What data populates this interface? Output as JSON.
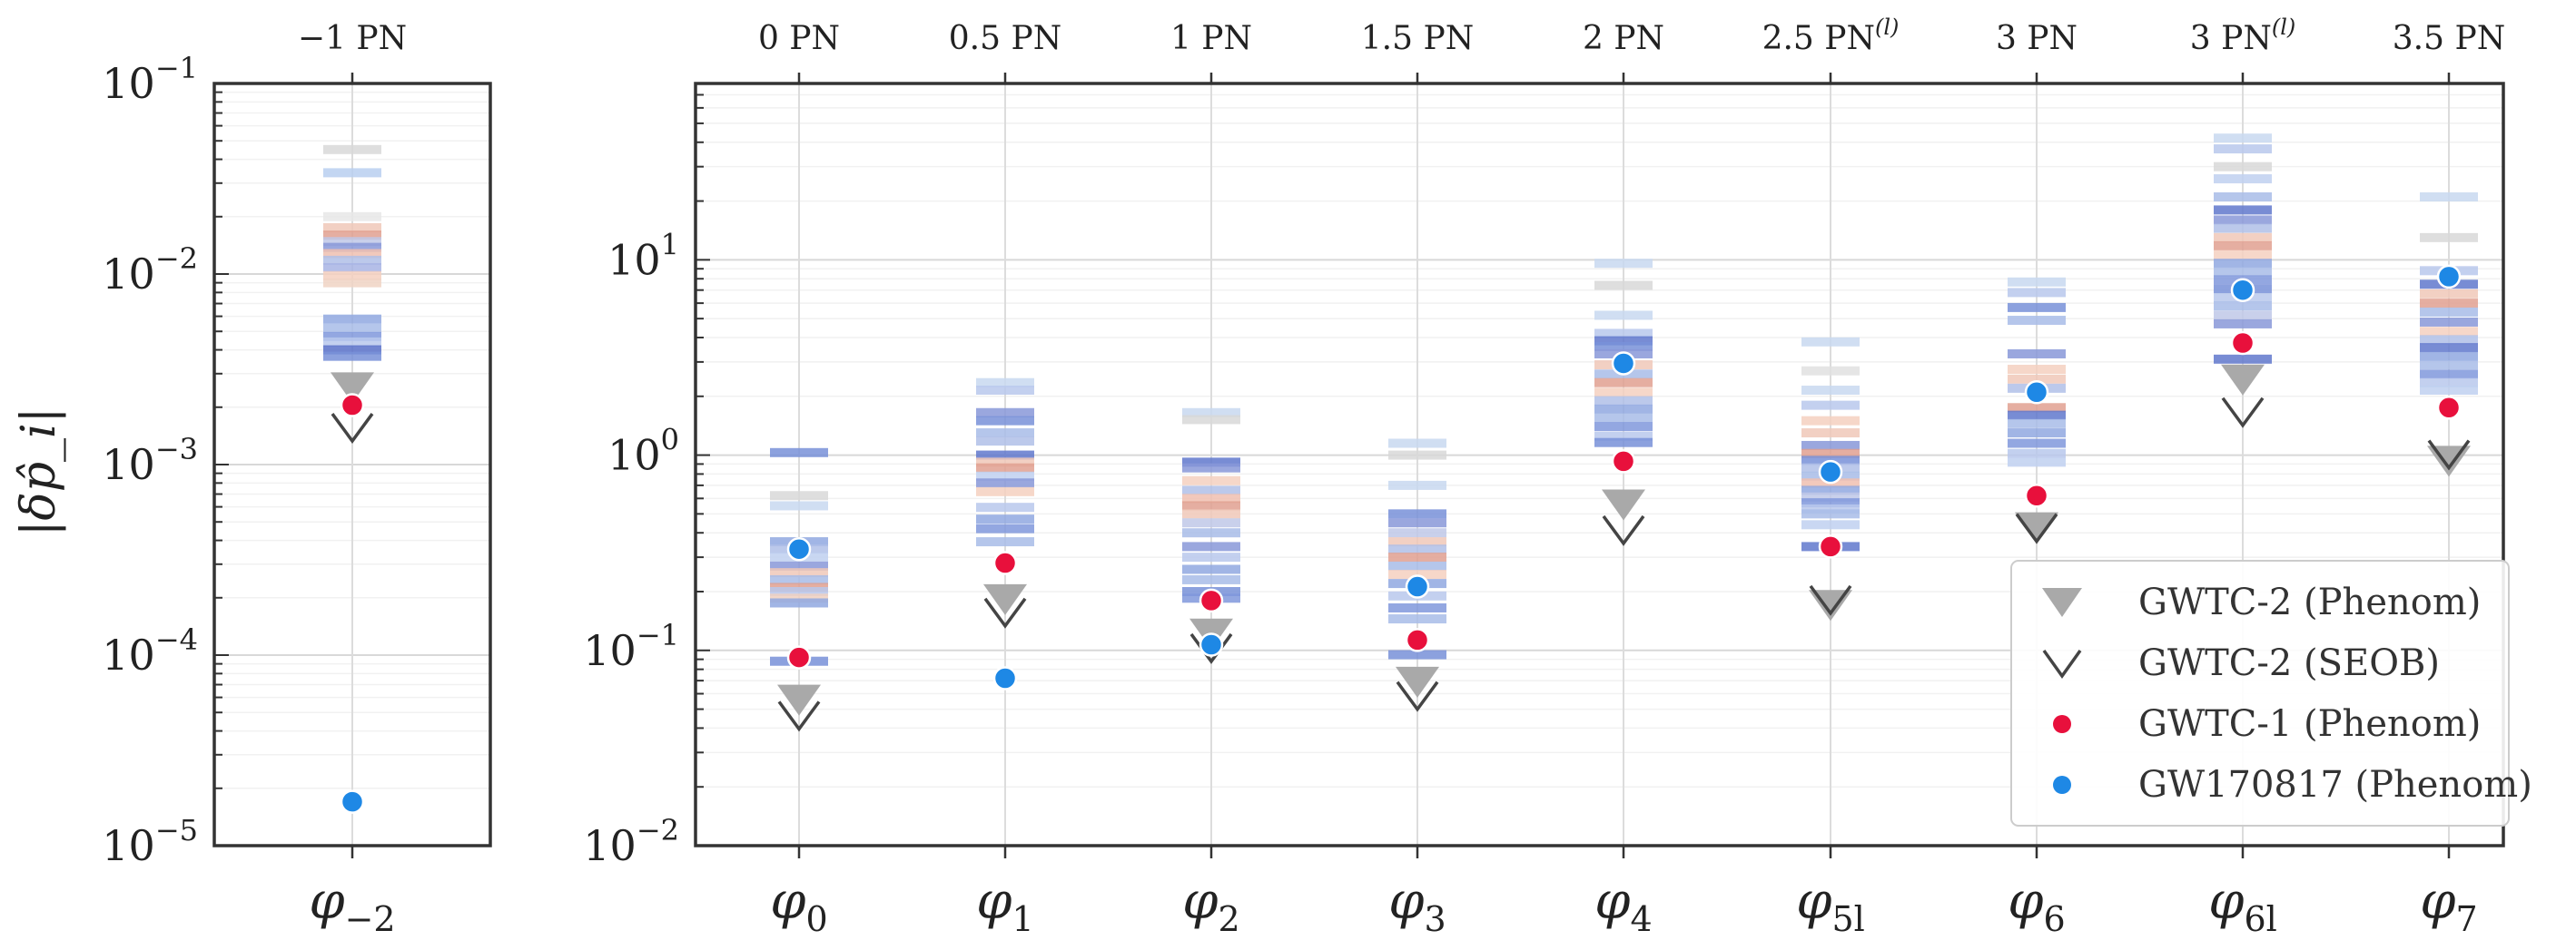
{
  "chart_data": {
    "type": "scatter",
    "yscale": "log",
    "ylabel": "|δp̂_i|",
    "panels": [
      {
        "name": "left",
        "ylim": [
          1e-05,
          0.1
        ],
        "yticks": [
          {
            "v": 1e-05,
            "base": "10",
            "exp": "−5"
          },
          {
            "v": 0.0001,
            "base": "10",
            "exp": "−4"
          },
          {
            "v": 0.001,
            "base": "10",
            "exp": "−3"
          },
          {
            "v": 0.01,
            "base": "10",
            "exp": "−2"
          },
          {
            "v": 0.1,
            "base": "10",
            "exp": "−1"
          }
        ],
        "categories": [
          {
            "label": "φ",
            "sub": "−2",
            "top": "−1 PN",
            "top_sup": "",
            "phenom": 0.0025,
            "seob": 0.00155,
            "gwtc1": 0.00205,
            "gw170817": 1.7e-05,
            "bars": [
              [
                0.045,
                "#d8d8d8"
              ],
              [
                0.034,
                "#b8cff0"
              ],
              [
                0.02,
                "#e8e8e8"
              ],
              [
                0.0175,
                "#f0c8b8"
              ],
              [
                0.016,
                "#e0a090"
              ],
              [
                0.0148,
                "#c0c8e8"
              ],
              [
                0.0138,
                "#8898d8"
              ],
              [
                0.0128,
                "#f0c0b0"
              ],
              [
                0.0118,
                "#b0c0e8"
              ],
              [
                0.0108,
                "#a8b4e4"
              ],
              [
                0.0098,
                "#f4d0c0"
              ],
              [
                0.009,
                "#f0d4c4"
              ],
              [
                0.0058,
                "#90a8e0"
              ],
              [
                0.0052,
                "#a8bce8"
              ],
              [
                0.0047,
                "#8098dc"
              ],
              [
                0.0044,
                "#b8c8ec"
              ],
              [
                0.004,
                "#5870c8"
              ],
              [
                0.0037,
                "#7890d8"
              ]
            ]
          }
        ]
      },
      {
        "name": "right",
        "ylim": [
          0.01,
          80
        ],
        "yticks": [
          {
            "v": 0.01,
            "base": "10",
            "exp": "−2"
          },
          {
            "v": 0.1,
            "base": "10",
            "exp": "−1"
          },
          {
            "v": 1,
            "base": "10",
            "exp": "0"
          },
          {
            "v": 10,
            "base": "10",
            "exp": "1"
          }
        ],
        "categories": [
          {
            "label": "φ",
            "sub": "0",
            "top": "0 PN",
            "top_sup": "",
            "phenom": 0.055,
            "seob": 0.046,
            "gwtc1": 0.092,
            "gw170817": 0.33,
            "bars": [
              [
                1.03,
                "#7890d8"
              ],
              [
                0.62,
                "#d8d8d8"
              ],
              [
                0.55,
                "#c8d8f0"
              ],
              [
                0.36,
                "#90a8e0"
              ],
              [
                0.33,
                "#b0c0e8"
              ],
              [
                0.3,
                "#c0d0f0"
              ],
              [
                0.27,
                "#8898d8"
              ],
              [
                0.25,
                "#f0c8b8"
              ],
              [
                0.23,
                "#a8bce8"
              ],
              [
                0.21,
                "#e0a090"
              ],
              [
                0.2,
                "#b8c8ec"
              ],
              [
                0.185,
                "#f0d0c0"
              ],
              [
                0.175,
                "#90a8e0"
              ],
              [
                0.088,
                "#7890d8"
              ]
            ]
          },
          {
            "label": "φ",
            "sub": "1",
            "top": "0.5 PN",
            "top_sup": "",
            "phenom": 0.18,
            "seob": 0.155,
            "gwtc1": 0.28,
            "gw170817": 0.072,
            "bars": [
              [
                2.35,
                "#c8d8f0"
              ],
              [
                2.15,
                "#b8c8ec"
              ],
              [
                1.65,
                "#8898d8"
              ],
              [
                1.5,
                "#7890d8"
              ],
              [
                1.3,
                "#a8bce8"
              ],
              [
                1.18,
                "#b0c0e8"
              ],
              [
                1.0,
                "#6078cc"
              ],
              [
                0.92,
                "#f0c8b8"
              ],
              [
                0.86,
                "#e0a090"
              ],
              [
                0.78,
                "#c0d0f0"
              ],
              [
                0.72,
                "#8898d8"
              ],
              [
                0.65,
                "#f4d0c0"
              ],
              [
                0.54,
                "#b8c8ec"
              ],
              [
                0.47,
                "#90a8e0"
              ],
              [
                0.42,
                "#8098dc"
              ],
              [
                0.36,
                "#a8bce8"
              ]
            ]
          },
          {
            "label": "φ",
            "sub": "2",
            "top": "1 PN",
            "top_sup": "",
            "phenom": 0.12,
            "seob": 0.102,
            "gwtc1": 0.18,
            "gw170817": 0.107,
            "bars": [
              [
                1.65,
                "#c8d8f0"
              ],
              [
                1.52,
                "#d8d8d8"
              ],
              [
                0.92,
                "#6078cc"
              ],
              [
                0.86,
                "#8898d8"
              ],
              [
                0.74,
                "#f4d0c0"
              ],
              [
                0.66,
                "#b0c0e8"
              ],
              [
                0.6,
                "#f0c0b0"
              ],
              [
                0.55,
                "#e0a090"
              ],
              [
                0.5,
                "#f0c8b8"
              ],
              [
                0.45,
                "#c0c8e8"
              ],
              [
                0.4,
                "#a8bce8"
              ],
              [
                0.34,
                "#8898d8"
              ],
              [
                0.3,
                "#b8c8ec"
              ],
              [
                0.26,
                "#90a8e0"
              ],
              [
                0.23,
                "#a8bce8"
              ],
              [
                0.2,
                "#7890d8"
              ],
              [
                0.185,
                "#8098dc"
              ]
            ]
          },
          {
            "label": "φ",
            "sub": "3",
            "top": "1.5 PN",
            "top_sup": "",
            "phenom": 0.068,
            "seob": 0.058,
            "gwtc1": 0.113,
            "gw170817": 0.212,
            "bars": [
              [
                1.15,
                "#c8d8f0"
              ],
              [
                1.0,
                "#d8d8d8"
              ],
              [
                0.7,
                "#c8d8f0"
              ],
              [
                0.5,
                "#7890d8"
              ],
              [
                0.45,
                "#8898d8"
              ],
              [
                0.4,
                "#c0c8e8"
              ],
              [
                0.36,
                "#f0c8b8"
              ],
              [
                0.33,
                "#b0c0e8"
              ],
              [
                0.3,
                "#e0a090"
              ],
              [
                0.27,
                "#a8bce8"
              ],
              [
                0.245,
                "#f4d0c0"
              ],
              [
                0.22,
                "#90a8e0"
              ],
              [
                0.19,
                "#b8c8ec"
              ],
              [
                0.165,
                "#8098dc"
              ],
              [
                0.145,
                "#a8bce8"
              ],
              [
                0.095,
                "#7890d8"
              ]
            ]
          },
          {
            "label": "φ",
            "sub": "4",
            "top": "2 PN",
            "top_sup": "",
            "phenom": 0.55,
            "seob": 0.41,
            "gwtc1": 0.93,
            "gw170817": 2.95,
            "bars": [
              [
                9.6,
                "#c8d8f0"
              ],
              [
                7.4,
                "#d8d8d8"
              ],
              [
                5.2,
                "#c8d8f0"
              ],
              [
                4.2,
                "#b8c8ec"
              ],
              [
                3.85,
                "#6078cc"
              ],
              [
                3.6,
                "#7890d8"
              ],
              [
                3.3,
                "#8898d8"
              ],
              [
                2.9,
                "#f0c8b8"
              ],
              [
                2.6,
                "#a8bce8"
              ],
              [
                2.35,
                "#e0a090"
              ],
              [
                2.1,
                "#f4d0c0"
              ],
              [
                1.9,
                "#b0c0e8"
              ],
              [
                1.72,
                "#90a8e0"
              ],
              [
                1.55,
                "#a8bce8"
              ],
              [
                1.4,
                "#8098dc"
              ],
              [
                1.25,
                "#b8c8ec"
              ],
              [
                1.16,
                "#7890d8"
              ]
            ]
          },
          {
            "label": "φ",
            "sub": "5l",
            "top": "2.5 PN",
            "top_sup": "(l)",
            "phenom": 0.168,
            "seob": 0.18,
            "gwtc1": 0.34,
            "gw170817": 0.82,
            "bars": [
              [
                3.8,
                "#c8d8f0"
              ],
              [
                2.7,
                "#e0e0e0"
              ],
              [
                2.15,
                "#c8d8f0"
              ],
              [
                1.8,
                "#b8c8ec"
              ],
              [
                1.5,
                "#f4d0c0"
              ],
              [
                1.3,
                "#f0c8b8"
              ],
              [
                1.12,
                "#8898d8"
              ],
              [
                1.02,
                "#e0a090"
              ],
              [
                0.94,
                "#7890d8"
              ],
              [
                0.86,
                "#b0c0e8"
              ],
              [
                0.78,
                "#a8bce8"
              ],
              [
                0.72,
                "#f0c0b0"
              ],
              [
                0.66,
                "#90a8e0"
              ],
              [
                0.61,
                "#c0c8e8"
              ],
              [
                0.57,
                "#8098dc"
              ],
              [
                0.53,
                "#b8c8ec"
              ],
              [
                0.5,
                "#a8bce8"
              ],
              [
                0.44,
                "#c0d0f0"
              ],
              [
                0.34,
                "#6078cc"
              ]
            ]
          },
          {
            "label": "φ",
            "sub": "6",
            "top": "3 PN",
            "top_sup": "",
            "phenom": 0.42,
            "seob": 0.42,
            "gwtc1": 0.62,
            "gw170817": 2.1,
            "bars": [
              [
                7.7,
                "#c8d8f0"
              ],
              [
                6.8,
                "#b8c8ec"
              ],
              [
                5.7,
                "#7890d8"
              ],
              [
                4.9,
                "#a8bce8"
              ],
              [
                3.3,
                "#8898d8"
              ],
              [
                2.75,
                "#f4d0c0"
              ],
              [
                2.45,
                "#f0c8b8"
              ],
              [
                2.2,
                "#b0c0e8"
              ],
              [
                1.75,
                "#e0a090"
              ],
              [
                1.6,
                "#6078cc"
              ],
              [
                1.45,
                "#a8bce8"
              ],
              [
                1.3,
                "#90a8e0"
              ],
              [
                1.15,
                "#8098dc"
              ],
              [
                1.02,
                "#b8c8ec"
              ],
              [
                0.92,
                "#c0d0f0"
              ]
            ]
          },
          {
            "label": "φ",
            "sub": "6l",
            "top": "3 PN",
            "top_sup": "(l)",
            "phenom": 2.4,
            "seob": 1.65,
            "gwtc1": 3.75,
            "gw170817": 7.0,
            "bars": [
              [
                42,
                "#c8d8f0"
              ],
              [
                37,
                "#b8c8ec"
              ],
              [
                30,
                "#d8d8d8"
              ],
              [
                26,
                "#c0d0f0"
              ],
              [
                21,
                "#a8bce8"
              ],
              [
                18,
                "#6078cc"
              ],
              [
                16,
                "#8898d8"
              ],
              [
                14.5,
                "#b0c0e8"
              ],
              [
                13,
                "#f0c8b8"
              ],
              [
                11.8,
                "#e0a090"
              ],
              [
                10.6,
                "#f4d0c0"
              ],
              [
                9.6,
                "#90a8e0"
              ],
              [
                8.7,
                "#a8bce8"
              ],
              [
                7.9,
                "#8098dc"
              ],
              [
                7.1,
                "#7890d8"
              ],
              [
                6.4,
                "#b8c8ec"
              ],
              [
                5.8,
                "#a8bce8"
              ],
              [
                5.2,
                "#c0c8e8"
              ],
              [
                4.7,
                "#8898d8"
              ],
              [
                3.1,
                "#6078cc"
              ]
            ]
          },
          {
            "label": "φ",
            "sub": "7",
            "top": "3.5 PN",
            "top_sup": "",
            "phenom": 0.92,
            "seob": 1.0,
            "gwtc1": 1.75,
            "gw170817": 8.2,
            "bars": [
              [
                21,
                "#c8d8f0"
              ],
              [
                13,
                "#d8d8d8"
              ],
              [
                8.8,
                "#b8c8ec"
              ],
              [
                7.5,
                "#6078cc"
              ],
              [
                6.7,
                "#f0c8b8"
              ],
              [
                6.0,
                "#e0a090"
              ],
              [
                5.4,
                "#a8bce8"
              ],
              [
                4.8,
                "#8898d8"
              ],
              [
                4.3,
                "#f4d0c0"
              ],
              [
                3.9,
                "#b0c0e8"
              ],
              [
                3.55,
                "#6078cc"
              ],
              [
                3.2,
                "#90a8e0"
              ],
              [
                2.9,
                "#a8bce8"
              ],
              [
                2.6,
                "#8098dc"
              ],
              [
                2.35,
                "#b8c8ec"
              ],
              [
                2.15,
                "#c0d0f0"
              ]
            ]
          }
        ]
      }
    ],
    "legend": {
      "placement": "bottom-right",
      "entries": [
        {
          "label": "GWTC-2 (Phenom)",
          "marker": "triangle-down",
          "color": "#a9a9a9"
        },
        {
          "label": "GWTC-2 (SEOB)",
          "marker": "chevron-down",
          "color": "#444444"
        },
        {
          "label": "GWTC-1 (Phenom)",
          "marker": "circle",
          "color": "#e8103c"
        },
        {
          "label": "GW170817 (Phenom)",
          "marker": "circle",
          "color": "#1e88e5"
        }
      ]
    },
    "colors": {
      "phenom": "#a9a9a9",
      "seob": "#444444",
      "gwtc1": "#e8103c",
      "gw170817": "#1e88e5",
      "axis": "#333333",
      "grid": "#d9d9d9"
    },
    "grid": true
  }
}
